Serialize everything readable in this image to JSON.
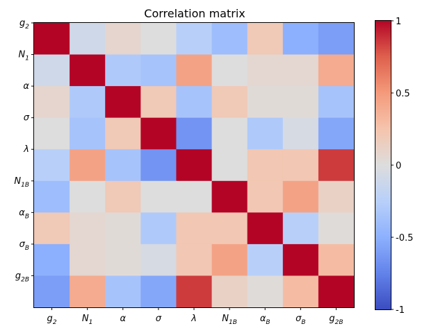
{
  "chart_data": {
    "type": "heatmap",
    "title": "Correlation matrix",
    "labels": [
      "g2",
      "N1",
      "α",
      "σ",
      "λ",
      "N1B",
      "αB",
      "σB",
      "g2B"
    ],
    "labels_display": [
      {
        "base": "g",
        "sub": "2"
      },
      {
        "base": "N",
        "sub": "1"
      },
      {
        "base": "α",
        "sub": ""
      },
      {
        "base": "σ",
        "sub": ""
      },
      {
        "base": "λ",
        "sub": ""
      },
      {
        "base": "N",
        "sub": "1B"
      },
      {
        "base": "α",
        "sub": "B"
      },
      {
        "base": "σ",
        "sub": "B"
      },
      {
        "base": "g",
        "sub": "2B"
      }
    ],
    "matrix": [
      [
        1.0,
        -0.1,
        0.08,
        0.0,
        -0.25,
        -0.4,
        0.2,
        -0.5,
        -0.6
      ],
      [
        -0.1,
        1.0,
        -0.3,
        -0.35,
        0.45,
        0.0,
        0.07,
        0.07,
        0.4
      ],
      [
        0.08,
        -0.3,
        1.0,
        0.2,
        -0.35,
        0.2,
        0.03,
        0.03,
        -0.35
      ],
      [
        0.0,
        -0.35,
        0.2,
        1.0,
        -0.65,
        0.0,
        -0.3,
        -0.05,
        -0.55
      ],
      [
        -0.25,
        0.45,
        -0.35,
        -0.65,
        1.0,
        0.0,
        0.22,
        0.22,
        0.85
      ],
      [
        -0.4,
        0.0,
        0.2,
        0.0,
        0.0,
        1.0,
        0.22,
        0.45,
        0.12
      ],
      [
        0.2,
        0.07,
        0.03,
        -0.3,
        0.22,
        0.22,
        1.0,
        -0.25,
        0.02
      ],
      [
        -0.5,
        0.07,
        0.03,
        -0.05,
        0.22,
        0.45,
        -0.25,
        1.0,
        0.3
      ],
      [
        -0.6,
        0.4,
        -0.35,
        -0.55,
        0.85,
        0.12,
        0.02,
        0.3,
        1.0
      ]
    ],
    "colormap": "coolwarm",
    "vmin": -1,
    "vmax": 1,
    "colorbar_ticks": [
      {
        "value": 1,
        "label": "1"
      },
      {
        "value": 0.5,
        "label": "0.5"
      },
      {
        "value": 0,
        "label": "0"
      },
      {
        "value": -0.5,
        "label": "-0.5"
      },
      {
        "value": -1,
        "label": "-1"
      }
    ],
    "grid": false,
    "legend": "colorbar-right"
  }
}
